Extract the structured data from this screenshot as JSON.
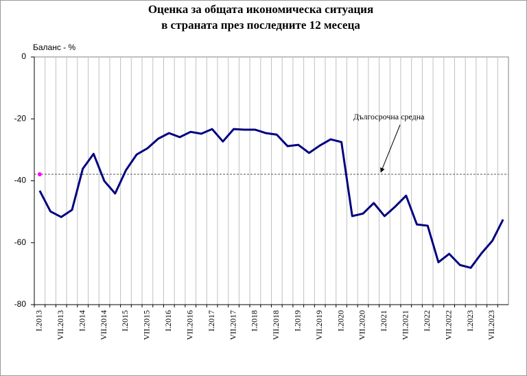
{
  "chart_data": {
    "type": "line",
    "title": [
      "Оценка за общата икономическа ситуация",
      "в страната през последните 12 месеца"
    ],
    "y_label": "Баланс - %",
    "categories": [
      "I.2013",
      null,
      "VII.2013",
      null,
      "I.2014",
      null,
      "VII.2014",
      null,
      "I.2015",
      null,
      "VII.2015",
      null,
      "I.2016",
      null,
      "VII.2016",
      null,
      "I.2017",
      null,
      "VII.2017",
      null,
      "I.2018",
      null,
      "VII.2018",
      null,
      "I.2019",
      null,
      "VII.2019",
      null,
      "I.2020",
      null,
      "VII.2020",
      null,
      "I.2021",
      null,
      "VII.2021",
      null,
      "I.2022",
      null,
      "VII.2022",
      null,
      "I.2023",
      null,
      "VII.2023",
      null
    ],
    "series": [
      {
        "color": "#000080",
        "values": [
          -43.2,
          -49.9,
          -51.7,
          -49.4,
          -36.1,
          -31.3,
          -40.1,
          -44.1,
          -36.6,
          -31.5,
          -29.5,
          -26.4,
          -24.6,
          -25.9,
          -24.2,
          -24.8,
          -23.3,
          -27.3,
          -23.3,
          -23.5,
          -23.5,
          -24.6,
          -25.1,
          -28.8,
          -28.4,
          -31.0,
          -28.6,
          -26.6,
          -27.5,
          -51.4,
          -50.6,
          -47.2,
          -51.4,
          -48.3,
          -44.8,
          -54.1,
          -54.5,
          -66.3,
          -63.6,
          -67.2,
          -68.1,
          -63.4,
          -59.4,
          -52.5
        ]
      }
    ],
    "reference": {
      "label": "Дългосрочна средна",
      "value": -37.9,
      "color": "#ff00ff"
    },
    "ylim": [
      -80,
      0
    ],
    "yticks": [
      0,
      -20,
      -40,
      -60,
      -80
    ],
    "grid": true
  }
}
